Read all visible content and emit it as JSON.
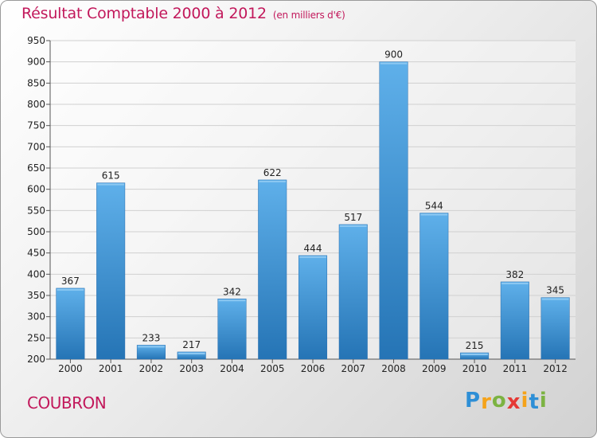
{
  "chart_data": {
    "type": "bar",
    "title": "Résultat Comptable 2000 à 2012",
    "subtitle": "(en milliers d'€)",
    "categories": [
      "2000",
      "2001",
      "2002",
      "2003",
      "2004",
      "2005",
      "2006",
      "2007",
      "2008",
      "2009",
      "2010",
      "2011",
      "2012"
    ],
    "values": [
      367,
      615,
      233,
      217,
      342,
      622,
      444,
      517,
      900,
      544,
      215,
      382,
      345
    ],
    "ylim": [
      200,
      950
    ],
    "yticks": [
      200,
      250,
      300,
      350,
      400,
      450,
      500,
      550,
      600,
      650,
      700,
      750,
      800,
      850,
      900,
      950
    ],
    "grid": true,
    "bar_color": "#3d8fd6",
    "xlabel": "",
    "ylabel": ""
  },
  "commune": "COUBRON",
  "logo": {
    "letters": [
      "P",
      "r",
      "o",
      "x",
      "i",
      "t",
      "i"
    ],
    "colors": [
      "#2e8fd6",
      "#f5a31a",
      "#7cb342",
      "#e53935",
      "#f5a31a",
      "#2e8fd6",
      "#7cb342"
    ]
  },
  "colors": {
    "title": "#c2185b",
    "bar": "#3d8fd6"
  }
}
